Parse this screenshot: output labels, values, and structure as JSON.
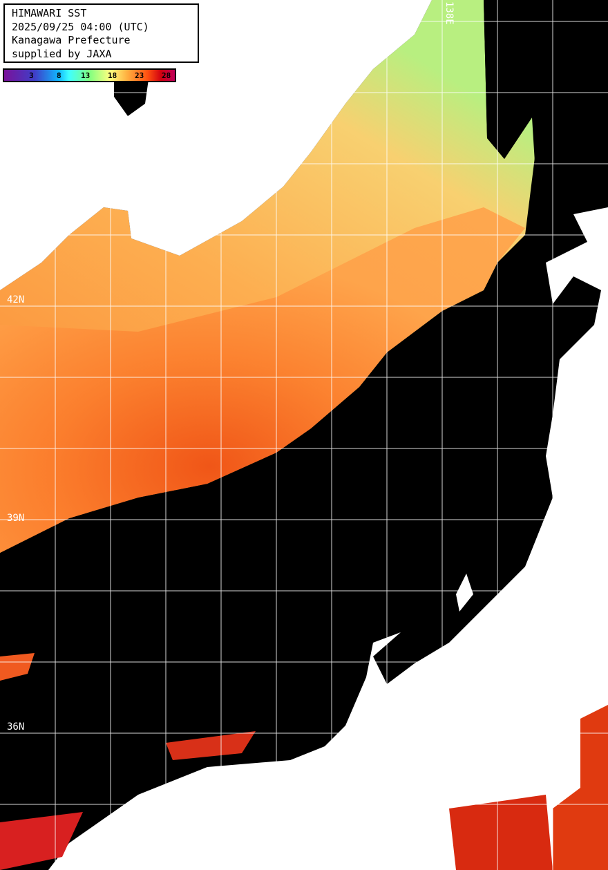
{
  "header": {
    "title": "HIMAWARI SST",
    "datetime": "2025/09/25 04:00 (UTC)",
    "region": "Kanagawa Prefecture",
    "credit": "supplied by JAXA"
  },
  "colorbar": {
    "ticks": [
      "3",
      "8",
      "13",
      "18",
      "23",
      "28"
    ],
    "colors": [
      "#7a119a",
      "#3f3fc8",
      "#10b8ff",
      "#3fffff",
      "#80ff80",
      "#ffff80",
      "#ffb040",
      "#ff5010",
      "#d00010",
      "#c0005a"
    ]
  },
  "grid": {
    "lat_labels": [
      "42N",
      "39N",
      "36N"
    ],
    "lon_labels": [
      "138E"
    ]
  },
  "colors": {
    "land": "#ffffff",
    "no_data": "#000000",
    "sea_warm": "#ff8c30",
    "sea_mild": "#ffb050",
    "sea_hot": "#f05010",
    "grid": "#ffffff"
  }
}
